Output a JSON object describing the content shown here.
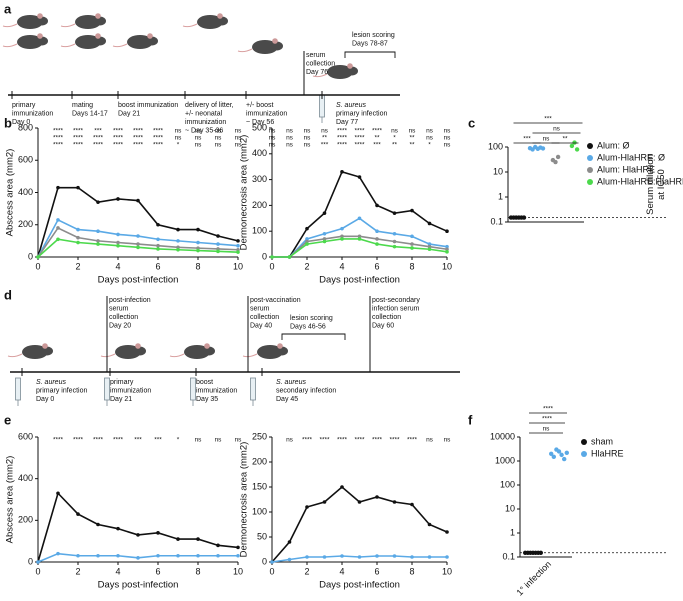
{
  "panels": [
    "a",
    "b",
    "c",
    "d",
    "e",
    "f"
  ],
  "diagrams": [
    {
      "below": [
        {
          "lines": [
            "primary",
            "immunization",
            "Day 0"
          ]
        },
        {
          "lines": [
            "mating",
            "Days 14-17"
          ]
        },
        {
          "lines": [
            "boost immunization",
            "Day 21"
          ]
        },
        {
          "lines": [
            "delivery of litter,",
            "+/- neonatal",
            "immunization",
            "~ Day 35-36"
          ]
        },
        {
          "lines": [
            "+/- boost",
            "immunization",
            "~ Day 56"
          ]
        },
        {
          "lines": [
            "S. aureus",
            "primary infection",
            "Day 77"
          ],
          "italic": true
        }
      ],
      "above": [
        {
          "lines": [
            "serum",
            "collection",
            "Day 76"
          ]
        },
        {
          "lines": [
            "lesion scoring",
            "Days 78-87"
          ]
        }
      ]
    },
    {
      "below": [
        {
          "lines": [
            "S. aureus",
            "primary infection",
            "Day 0"
          ],
          "italic": true
        },
        {
          "lines": [
            "primary",
            "immunization",
            "Day 21"
          ]
        },
        {
          "lines": [
            "boost",
            "immunization",
            "Day 35"
          ]
        },
        {
          "lines": [
            "S. aureus",
            "secondary infection",
            "Day 45"
          ],
          "italic": true
        }
      ],
      "above": [
        {
          "lines": [
            "post-infection",
            "serum",
            "collection",
            "Day 20"
          ]
        },
        {
          "lines": [
            "post-vaccination",
            "serum",
            "collection",
            "Day 40"
          ]
        },
        {
          "lines": [
            "lesion scoring",
            "Days 46-56"
          ]
        },
        {
          "lines": [
            "post-secondary",
            "infection serum",
            "collection",
            "Day 60"
          ]
        }
      ]
    }
  ],
  "chart_data": [
    {
      "type": "line",
      "ylabel": "Abscess area (mm2)",
      "xlabel": "Days post-infection",
      "x": [
        0,
        1,
        2,
        3,
        4,
        5,
        6,
        7,
        8,
        9,
        10
      ],
      "xlim": [
        0,
        10
      ],
      "xticks": [
        0,
        2,
        4,
        6,
        8,
        10
      ],
      "ylim": [
        0,
        800
      ],
      "yticks": [
        0,
        200,
        400,
        600,
        800
      ],
      "series": [
        {
          "color": "#111111",
          "values": [
            0,
            430,
            430,
            340,
            360,
            350,
            200,
            170,
            170,
            130,
            100
          ]
        },
        {
          "color": "#5aa9e6",
          "values": [
            0,
            230,
            170,
            160,
            140,
            130,
            110,
            100,
            90,
            80,
            70
          ]
        },
        {
          "color": "#8c8c8c",
          "values": [
            0,
            180,
            120,
            100,
            90,
            80,
            70,
            60,
            55,
            50,
            45
          ]
        },
        {
          "color": "#4cd94c",
          "values": [
            0,
            110,
            90,
            80,
            70,
            60,
            50,
            45,
            40,
            35,
            30
          ]
        }
      ],
      "annotations": [
        {
          "color": "#5aa9e6",
          "x": [
            1,
            2,
            3,
            4,
            5,
            6,
            7,
            8,
            9,
            10
          ],
          "labels": [
            "****",
            "****",
            "***",
            "****",
            "****",
            "****",
            "ns",
            "ns",
            "ns",
            "ns"
          ]
        },
        {
          "color": "#8c8c8c",
          "x": [
            1,
            2,
            3,
            4,
            5,
            6,
            7,
            8,
            9,
            10
          ],
          "labels": [
            "****",
            "****",
            "****",
            "****",
            "****",
            "****",
            "ns",
            "ns",
            "ns",
            "ns"
          ]
        },
        {
          "color": "#4cd94c",
          "x": [
            1,
            2,
            3,
            4,
            5,
            6,
            7,
            8,
            9,
            10
          ],
          "labels": [
            "****",
            "****",
            "****",
            "****",
            "****",
            "****",
            "*",
            "ns",
            "ns",
            "ns"
          ]
        }
      ]
    },
    {
      "type": "line",
      "ylabel": "Dermonecrosis area (mm2)",
      "xlabel": "Days post-infection",
      "x": [
        0,
        1,
        2,
        3,
        4,
        5,
        6,
        7,
        8,
        9,
        10
      ],
      "xlim": [
        0,
        10
      ],
      "xticks": [
        0,
        2,
        4,
        6,
        8,
        10
      ],
      "ylim": [
        0,
        500
      ],
      "yticks": [
        0,
        100,
        200,
        300,
        400,
        500
      ],
      "series": [
        {
          "color": "#111111",
          "values": [
            0,
            0,
            110,
            170,
            330,
            310,
            200,
            170,
            180,
            130,
            100
          ]
        },
        {
          "color": "#5aa9e6",
          "values": [
            0,
            0,
            70,
            90,
            110,
            150,
            100,
            90,
            80,
            50,
            40
          ]
        },
        {
          "color": "#8c8c8c",
          "values": [
            0,
            0,
            60,
            70,
            80,
            80,
            70,
            60,
            50,
            40,
            30
          ]
        },
        {
          "color": "#4cd94c",
          "values": [
            0,
            0,
            50,
            60,
            70,
            70,
            50,
            40,
            35,
            30,
            20
          ]
        }
      ],
      "annotations": [
        {
          "color": "#5aa9e6",
          "x": [
            0,
            1,
            2,
            3,
            4,
            5,
            6,
            7,
            8,
            9,
            10
          ],
          "labels": [
            "ns",
            "ns",
            "ns",
            "ns",
            "****",
            "****",
            "****",
            "ns",
            "ns",
            "ns",
            "ns"
          ]
        },
        {
          "color": "#8c8c8c",
          "x": [
            0,
            1,
            2,
            3,
            4,
            5,
            6,
            7,
            8,
            9,
            10
          ],
          "labels": [
            "ns",
            "ns",
            "ns",
            "**",
            "****",
            "****",
            "**",
            "*",
            "**",
            "ns",
            "ns"
          ]
        },
        {
          "color": "#4cd94c",
          "x": [
            0,
            1,
            2,
            3,
            4,
            5,
            6,
            7,
            8,
            9,
            10
          ],
          "labels": [
            "ns",
            "ns",
            "ns",
            "***",
            "****",
            "****",
            "***",
            "**",
            "**",
            "*",
            "ns"
          ]
        }
      ]
    },
    {
      "type": "strip",
      "ylabel": [
        "Serum dilution",
        "at IC50"
      ],
      "log_y": true,
      "ylim": [
        0.1,
        100
      ],
      "yticks": [
        0.1,
        1,
        10,
        100
      ],
      "lod": 0.15,
      "series": [
        {
          "name": "Alum: Ø",
          "color": "#111111",
          "values": [
            0.15,
            0.15,
            0.15,
            0.15,
            0.15,
            0.15
          ]
        },
        {
          "name": "Alum-HlaHRE: Ø",
          "color": "#5aa9e6",
          "values": [
            90,
            80,
            100,
            85,
            95,
            88
          ]
        },
        {
          "name": "Alum: HlaHRE",
          "color": "#8c8c8c",
          "values": [
            30,
            25,
            40
          ]
        },
        {
          "name": "Alum-HlaHRE:HlaHRE",
          "color": "#4cd94c",
          "values": [
            110,
            150,
            80
          ]
        }
      ],
      "comparisons": [
        {
          "from": 0,
          "to": 1,
          "label": "***"
        },
        {
          "from": 1,
          "to": 2,
          "label": "ns"
        },
        {
          "from": 2,
          "to": 3,
          "label": "**"
        },
        {
          "from": 1,
          "to": 3,
          "label": "ns"
        },
        {
          "from": 0,
          "to": 3,
          "label": "***"
        }
      ]
    },
    {
      "type": "line",
      "ylabel": "Abscess area (mm2)",
      "xlabel": "Days post-infection",
      "x": [
        0,
        1,
        2,
        3,
        4,
        5,
        6,
        7,
        8,
        9,
        10
      ],
      "xlim": [
        0,
        10
      ],
      "xticks": [
        0,
        2,
        4,
        6,
        8,
        10
      ],
      "ylim": [
        0,
        600
      ],
      "yticks": [
        0,
        200,
        400,
        600
      ],
      "series": [
        {
          "color": "#111111",
          "values": [
            0,
            330,
            230,
            180,
            160,
            130,
            140,
            110,
            110,
            80,
            70
          ]
        },
        {
          "color": "#5aa9e6",
          "values": [
            0,
            40,
            30,
            30,
            30,
            20,
            30,
            30,
            30,
            30,
            30
          ]
        }
      ],
      "annotations": [
        {
          "color": "#111111",
          "x": [
            1,
            2,
            3,
            4,
            5,
            6,
            7,
            8,
            9,
            10
          ],
          "labels": [
            "****",
            "****",
            "****",
            "****",
            "***",
            "***",
            "*",
            "ns",
            "ns",
            "ns"
          ]
        }
      ]
    },
    {
      "type": "line",
      "ylabel": "Dermonecrosis area (mm2)",
      "xlabel": "Days post-infection",
      "x": [
        0,
        1,
        2,
        3,
        4,
        5,
        6,
        7,
        8,
        9,
        10
      ],
      "xlim": [
        0,
        10
      ],
      "xticks": [
        0,
        2,
        4,
        6,
        8,
        10
      ],
      "ylim": [
        0,
        250
      ],
      "yticks": [
        0,
        50,
        100,
        150,
        200,
        250
      ],
      "series": [
        {
          "color": "#111111",
          "values": [
            0,
            40,
            110,
            120,
            150,
            120,
            130,
            120,
            115,
            75,
            60
          ]
        },
        {
          "color": "#5aa9e6",
          "values": [
            0,
            5,
            10,
            10,
            12,
            10,
            12,
            12,
            10,
            10,
            10
          ]
        }
      ],
      "annotations": [
        {
          "color": "#111111",
          "x": [
            1,
            2,
            3,
            4,
            5,
            6,
            7,
            8,
            9,
            10
          ],
          "labels": [
            "ns",
            "****",
            "****",
            "****",
            "****",
            "****",
            "****",
            "****",
            "ns",
            "ns"
          ]
        }
      ]
    },
    {
      "type": "strip",
      "ylabel": [
        "Serum dilution",
        "at IC50"
      ],
      "log_y": true,
      "categories": [
        "1° infection"
      ],
      "ylim": [
        0.1,
        10000
      ],
      "yticks": [
        0.1,
        1,
        10,
        100,
        1000,
        10000
      ],
      "lod": 0.15,
      "series": [
        {
          "name": "sham",
          "color": "#111111",
          "values": [
            0.15,
            0.15,
            0.15,
            0.15,
            0.15,
            0.15,
            0.15
          ]
        },
        {
          "name": "HlaHRE",
          "color": "#5aa9e6",
          "values": [
            2000,
            1500,
            3000,
            2500,
            1800,
            1200,
            2200
          ]
        }
      ],
      "comparisons": [
        {
          "from": 0,
          "to": 1,
          "label": "ns"
        },
        {
          "from": 0,
          "to": 1,
          "label": "****"
        },
        {
          "from": 0,
          "to": 1,
          "label": "****"
        }
      ]
    }
  ]
}
